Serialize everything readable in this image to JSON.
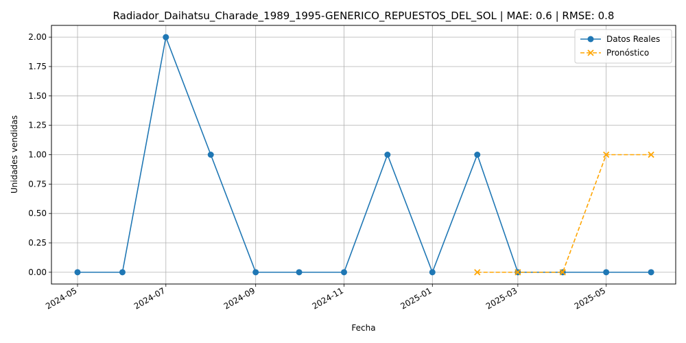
{
  "chart_data": {
    "type": "line",
    "title": "Radiador_Daihatsu_Charade_1989_1995-GENERICO_REPUESTOS_DEL_SOL | MAE: 0.6 | RMSE: 0.8",
    "xlabel": "Fecha",
    "ylabel": "Unidades vendidas",
    "x_range": [
      "2024-04-13",
      "2025-06-18"
    ],
    "ylim": [
      -0.1,
      2.1
    ],
    "grid": true,
    "legend_position": "top-right",
    "x_ticks": [
      "2024-05",
      "2024-07",
      "2024-09",
      "2024-11",
      "2025-01",
      "2025-03",
      "2025-05"
    ],
    "y_ticks": [
      "0.00",
      "0.25",
      "0.50",
      "0.75",
      "1.00",
      "1.25",
      "1.50",
      "1.75",
      "2.00"
    ],
    "series": [
      {
        "name": "Datos Reales",
        "color": "#1f77b4",
        "style": "solid",
        "marker": "circle",
        "points": [
          {
            "x": "2024-05-01",
            "y": 0
          },
          {
            "x": "2024-06-01",
            "y": 0
          },
          {
            "x": "2024-07-01",
            "y": 2
          },
          {
            "x": "2024-08-01",
            "y": 1
          },
          {
            "x": "2024-09-01",
            "y": 0
          },
          {
            "x": "2024-10-01",
            "y": 0
          },
          {
            "x": "2024-11-01",
            "y": 0
          },
          {
            "x": "2024-12-01",
            "y": 1
          },
          {
            "x": "2025-01-01",
            "y": 0
          },
          {
            "x": "2025-02-01",
            "y": 1
          },
          {
            "x": "2025-03-01",
            "y": 0
          },
          {
            "x": "2025-04-01",
            "y": 0
          },
          {
            "x": "2025-05-01",
            "y": 0
          },
          {
            "x": "2025-06-01",
            "y": 0
          }
        ]
      },
      {
        "name": "Pronóstico",
        "color": "#ffa500",
        "style": "dashed",
        "marker": "x",
        "points": [
          {
            "x": "2025-02-01",
            "y": 0
          },
          {
            "x": "2025-03-01",
            "y": 0
          },
          {
            "x": "2025-04-01",
            "y": 0
          },
          {
            "x": "2025-05-01",
            "y": 1
          },
          {
            "x": "2025-06-01",
            "y": 1
          }
        ]
      }
    ]
  }
}
